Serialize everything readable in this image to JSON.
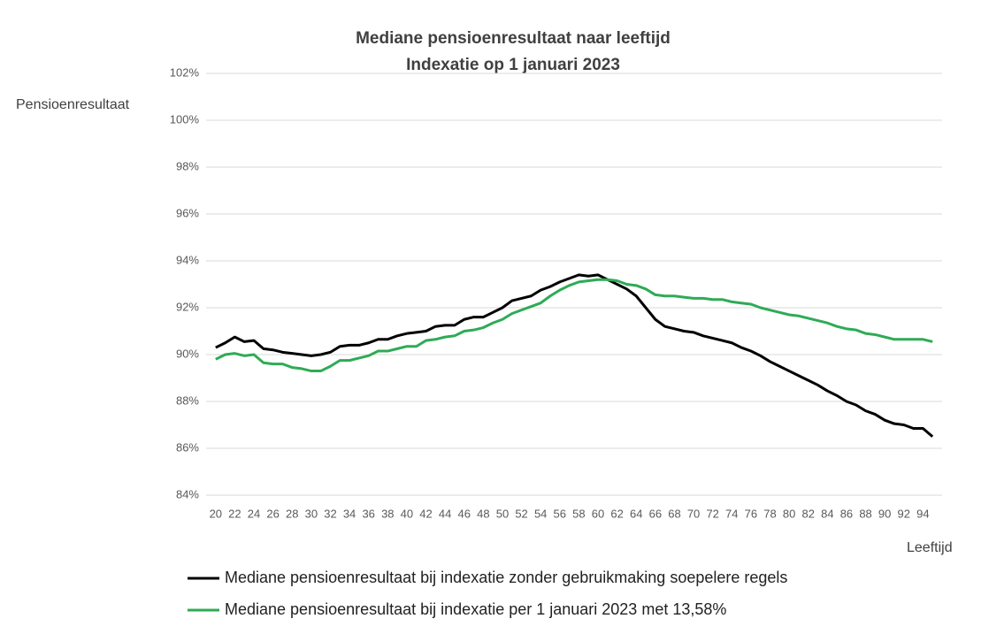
{
  "chart_data": {
    "type": "line",
    "title": "Mediane pensioenresultaat naar leeftijd",
    "subtitle": "Indexatie op 1 januari 2023",
    "y_label": "Pensioenresultaat",
    "x_label": "Leeftijd",
    "x": [
      20,
      21,
      22,
      23,
      24,
      25,
      26,
      27,
      28,
      29,
      30,
      31,
      32,
      33,
      34,
      35,
      36,
      37,
      38,
      39,
      40,
      41,
      42,
      43,
      44,
      45,
      46,
      47,
      48,
      49,
      50,
      51,
      52,
      53,
      54,
      55,
      56,
      57,
      58,
      59,
      60,
      61,
      62,
      63,
      64,
      65,
      66,
      67,
      68,
      69,
      70,
      71,
      72,
      73,
      74,
      75,
      76,
      77,
      78,
      79,
      80,
      81,
      82,
      83,
      84,
      85,
      86,
      87,
      88,
      89,
      90,
      91,
      92,
      93,
      94,
      95
    ],
    "series": [
      {
        "name": "Mediane pensioenresultaat bij indexatie zonder gebruikmaking soepelere regels",
        "color": "#000000",
        "values": [
          90.3,
          90.5,
          90.75,
          90.55,
          90.6,
          90.25,
          90.2,
          90.1,
          90.05,
          90.0,
          89.95,
          90.0,
          90.1,
          90.35,
          90.4,
          90.4,
          90.5,
          90.65,
          90.65,
          90.8,
          90.9,
          90.95,
          91.0,
          91.2,
          91.25,
          91.25,
          91.5,
          91.6,
          91.6,
          91.8,
          92.0,
          92.3,
          92.4,
          92.5,
          92.75,
          92.9,
          93.1,
          93.25,
          93.4,
          93.35,
          93.4,
          93.2,
          93.0,
          92.8,
          92.5,
          92.0,
          91.5,
          91.2,
          91.1,
          91.0,
          90.95,
          90.8,
          90.7,
          90.6,
          90.5,
          90.3,
          90.15,
          89.95,
          89.7,
          89.5,
          89.3,
          89.1,
          88.9,
          88.7,
          88.45,
          88.25,
          88.0,
          87.85,
          87.6,
          87.45,
          87.2,
          87.05,
          87.0,
          86.85,
          86.85,
          86.5
        ]
      },
      {
        "name": "Mediane pensioenresultaat bij indexatie per 1 januari 2023 met 13,58%",
        "color": "#2eab55",
        "values": [
          89.8,
          90.0,
          90.05,
          89.95,
          90.0,
          89.65,
          89.6,
          89.6,
          89.45,
          89.4,
          89.3,
          89.3,
          89.5,
          89.75,
          89.75,
          89.85,
          89.95,
          90.15,
          90.15,
          90.25,
          90.35,
          90.35,
          90.6,
          90.65,
          90.75,
          90.8,
          91.0,
          91.05,
          91.15,
          91.35,
          91.5,
          91.75,
          91.9,
          92.05,
          92.2,
          92.5,
          92.75,
          92.95,
          93.1,
          93.15,
          93.2,
          93.2,
          93.15,
          93.0,
          92.95,
          92.8,
          92.55,
          92.5,
          92.5,
          92.45,
          92.4,
          92.4,
          92.35,
          92.35,
          92.25,
          92.2,
          92.15,
          92.0,
          91.9,
          91.8,
          91.7,
          91.65,
          91.55,
          91.45,
          91.35,
          91.2,
          91.1,
          91.05,
          90.9,
          90.85,
          90.75,
          90.65,
          90.65,
          90.65,
          90.65,
          90.55
        ]
      }
    ],
    "xlim": [
      19,
      96
    ],
    "xticks": [
      20,
      22,
      24,
      26,
      28,
      30,
      32,
      34,
      36,
      38,
      40,
      42,
      44,
      46,
      48,
      50,
      52,
      54,
      56,
      58,
      60,
      62,
      64,
      66,
      68,
      70,
      72,
      74,
      76,
      78,
      80,
      82,
      84,
      86,
      88,
      90,
      92,
      94
    ],
    "ylim": [
      84,
      102
    ],
    "yticks": [
      {
        "value": 84,
        "label": "84%"
      },
      {
        "value": 86,
        "label": "86%"
      },
      {
        "value": 88,
        "label": "88%"
      },
      {
        "value": 90,
        "label": "90%"
      },
      {
        "value": 92,
        "label": "92%"
      },
      {
        "value": 94,
        "label": "94%"
      },
      {
        "value": 96,
        "label": "96%"
      },
      {
        "value": 98,
        "label": "98%"
      },
      {
        "value": 100,
        "label": "100%"
      },
      {
        "value": 102,
        "label": "102%"
      }
    ],
    "grid": true,
    "legend": "bottom"
  }
}
